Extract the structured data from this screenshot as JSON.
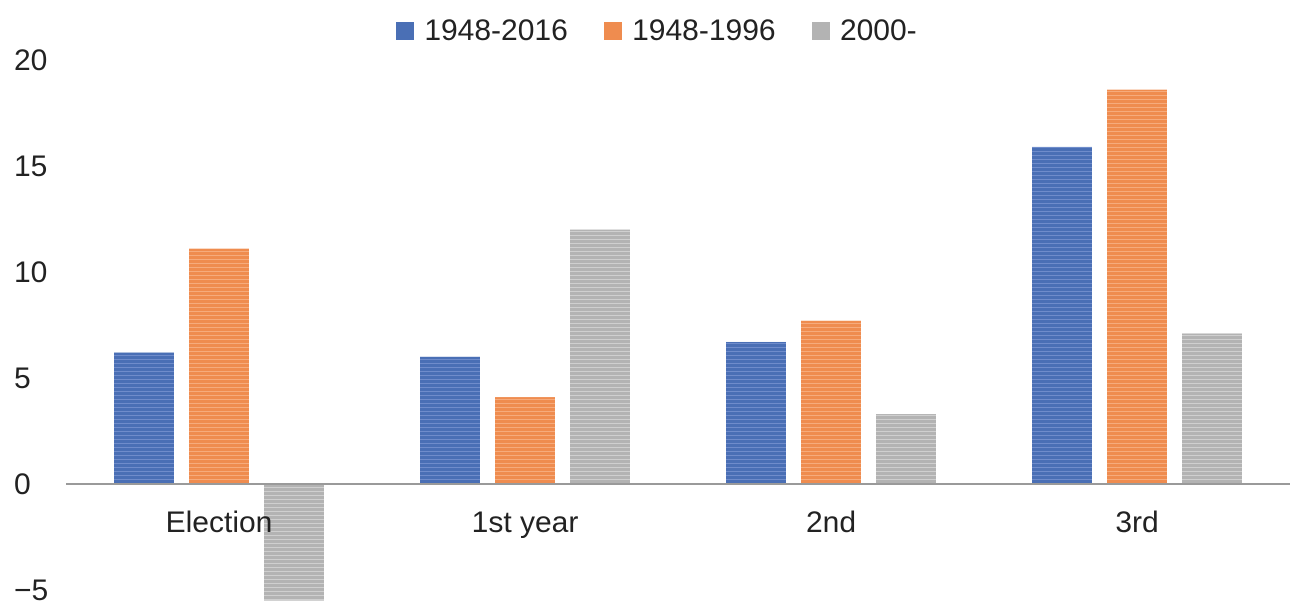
{
  "chart_data": {
    "type": "bar",
    "categories": [
      "Election",
      "1st year",
      "2nd",
      "3rd"
    ],
    "series": [
      {
        "name": "1948-2016",
        "color": "#4a6fb5",
        "values": [
          6.2,
          6.0,
          6.7,
          15.9
        ]
      },
      {
        "name": "1948-1996",
        "color": "#ef8c4f",
        "values": [
          11.1,
          4.1,
          7.7,
          18.6
        ]
      },
      {
        "name": "2000-",
        "color": "#b3b3b3",
        "values": [
          -5.5,
          12.0,
          3.3,
          7.1
        ]
      }
    ],
    "ylim": [
      -5,
      20
    ],
    "yticks": [
      20,
      15,
      10,
      5,
      0,
      -5
    ],
    "ytick_labels": [
      "20",
      "15",
      "10",
      "5",
      "0",
      "−5"
    ],
    "title": "",
    "xlabel": "",
    "ylabel": "",
    "legend_position": "top",
    "grid": false,
    "bar_style": "horizontal-line hatching"
  }
}
